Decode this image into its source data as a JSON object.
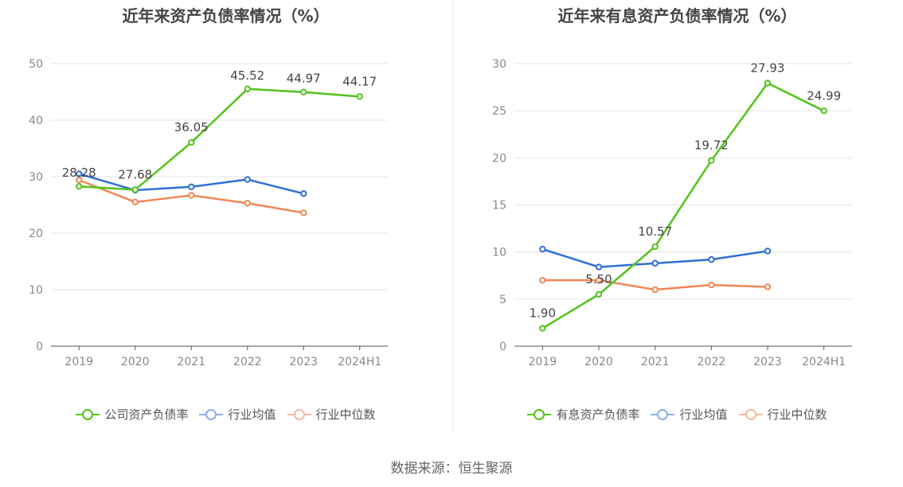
{
  "chart_data": [
    {
      "type": "line",
      "title": "近年来资产负债率情况（%）",
      "categories": [
        "2019",
        "2020",
        "2021",
        "2022",
        "2023",
        "2024H1"
      ],
      "ylim": [
        0,
        50
      ],
      "yticks": [
        "0",
        "10",
        "20",
        "30",
        "40",
        "50"
      ],
      "grid": true,
      "legend_position": "bottom",
      "series": [
        {
          "name": "公司资产负债率",
          "color": "#52c41a",
          "values": [
            28.28,
            27.68,
            36.05,
            45.52,
            44.97,
            44.17
          ],
          "labels": [
            "28.28",
            "27.68",
            "36.05",
            "45.52",
            "44.97",
            "44.17"
          ],
          "legend_color": "#52c41a"
        },
        {
          "name": "行业均值",
          "color": "#2f6fd6",
          "values": [
            30.5,
            27.6,
            28.2,
            29.5,
            27.0,
            null
          ],
          "legend_color": "#8cb0ee"
        },
        {
          "name": "行业中位数",
          "color": "#f08655",
          "values": [
            29.4,
            25.5,
            26.7,
            25.3,
            23.6,
            null
          ],
          "legend_color": "#f7b89d"
        }
      ]
    },
    {
      "type": "line",
      "title": "近年来有息资产负债率情况（%）",
      "categories": [
        "2019",
        "2020",
        "2021",
        "2022",
        "2023",
        "2024H1"
      ],
      "ylim": [
        0,
        30
      ],
      "yticks": [
        "0",
        "5",
        "10",
        "15",
        "20",
        "25",
        "30"
      ],
      "grid": true,
      "legend_position": "bottom",
      "series": [
        {
          "name": "有息资产负债率",
          "color": "#52c41a",
          "values": [
            1.9,
            5.5,
            10.57,
            19.72,
            27.93,
            24.99
          ],
          "labels": [
            "1.90",
            "5.50",
            "10.57",
            "19.72",
            "27.93",
            "24.99"
          ],
          "legend_color": "#52c41a"
        },
        {
          "name": "行业均值",
          "color": "#2f6fd6",
          "values": [
            10.3,
            8.4,
            8.8,
            9.2,
            10.1,
            null
          ],
          "legend_color": "#8cb0ee"
        },
        {
          "name": "行业中位数",
          "color": "#f08655",
          "values": [
            7.0,
            7.0,
            6.0,
            6.5,
            6.3,
            null
          ],
          "legend_color": "#f7b89d"
        }
      ]
    }
  ],
  "source": "数据来源：恒生聚源"
}
